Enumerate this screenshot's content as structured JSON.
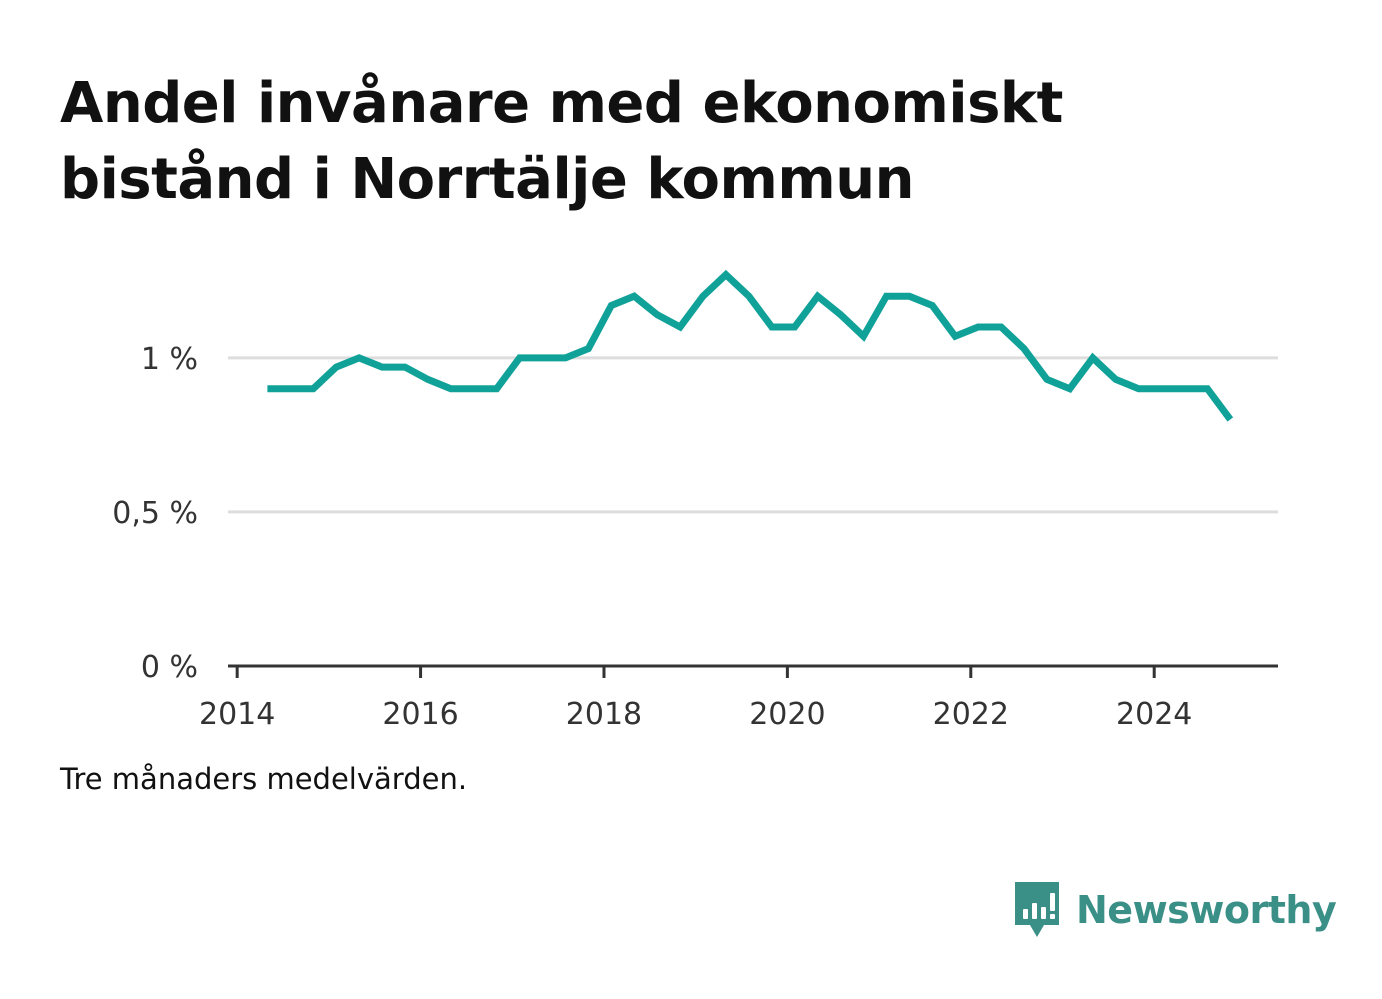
{
  "title": "Andel invånare med ekonomiskt bistånd i Norrtälje kommun",
  "note": "Tre månaders medelvärden.",
  "brand": {
    "name": "Newsworthy",
    "icon": "newsworthy-logo-icon",
    "color": "#3a8f87"
  },
  "colors": {
    "line": "#10a298",
    "grid": "#dddddd",
    "axis": "#333333"
  },
  "chart_data": {
    "type": "line",
    "title": "Andel invånare med ekonomiskt bistånd i Norrtälje kommun",
    "xlabel": "",
    "ylabel": "",
    "x_ticks": [
      "2014",
      "2016",
      "2018",
      "2020",
      "2022",
      "2024"
    ],
    "y_ticks": [
      {
        "value": 0,
        "label": "0 %"
      },
      {
        "value": 0.5,
        "label": "0,5 %"
      },
      {
        "value": 1,
        "label": "1 %"
      }
    ],
    "xlim": [
      2013.9,
      2025.35
    ],
    "ylim": [
      0,
      1.35
    ],
    "grid": true,
    "x": [
      2014.33,
      2014.58,
      2014.83,
      2015.08,
      2015.33,
      2015.58,
      2015.83,
      2016.08,
      2016.33,
      2016.58,
      2016.83,
      2017.08,
      2017.33,
      2017.58,
      2017.83,
      2018.08,
      2018.33,
      2018.58,
      2018.83,
      2019.08,
      2019.33,
      2019.58,
      2019.83,
      2020.08,
      2020.33,
      2020.58,
      2020.83,
      2021.08,
      2021.33,
      2021.58,
      2021.83,
      2022.08,
      2022.33,
      2022.58,
      2022.83,
      2023.08,
      2023.33,
      2023.58,
      2023.83,
      2024.08,
      2024.33,
      2024.58,
      2024.83
    ],
    "series": [
      {
        "values": [
          0.9,
          0.9,
          0.9,
          0.97,
          1.0,
          0.97,
          0.97,
          0.93,
          0.9,
          0.9,
          0.9,
          1.0,
          1.0,
          1.0,
          1.03,
          1.17,
          1.2,
          1.14,
          1.1,
          1.2,
          1.27,
          1.2,
          1.1,
          1.1,
          1.2,
          1.14,
          1.07,
          1.2,
          1.2,
          1.17,
          1.07,
          1.1,
          1.1,
          1.03,
          0.93,
          0.9,
          1.0,
          0.93,
          0.9,
          0.9,
          0.9,
          0.9,
          0.8
        ]
      }
    ]
  }
}
